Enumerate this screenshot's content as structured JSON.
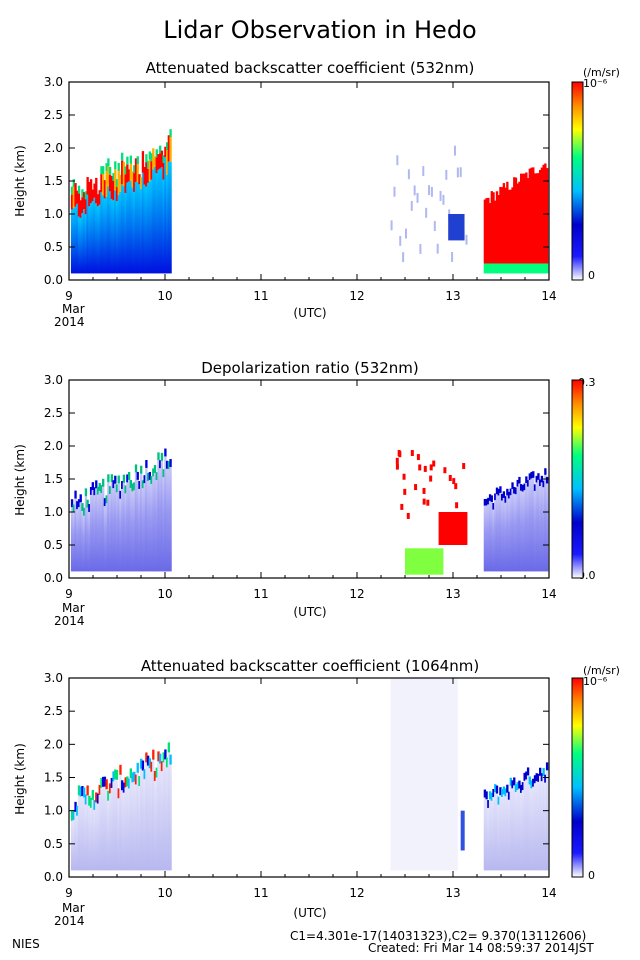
{
  "page": {
    "title": "Lidar Observation in Hedo",
    "footer_left": "NIES",
    "footer_calib": "C1=4.301e-17(14031323),C2= 9.370(13112606)",
    "footer_created": "Created: Fri Mar 14 08:59:37 2014JST"
  },
  "colors": {
    "colorbar_stops": [
      "#ffffff",
      "#1a1aff",
      "#0000cc",
      "#00bfff",
      "#00ff7f",
      "#ffff00",
      "#ff8c00",
      "#ff0000"
    ]
  },
  "chart_data": [
    {
      "type": "heatmap",
      "title": "Attenuated backscatter coefficient (532nm)",
      "ylabel": "Height (km)",
      "xlabel": "(UTC)",
      "x_ticks": [
        "9",
        "10",
        "11",
        "12",
        "13",
        "14"
      ],
      "x_sub_labels": [
        "Mar",
        "2014"
      ],
      "xlim": [
        9,
        14
      ],
      "ylim": [
        0.0,
        3.0
      ],
      "y_ticks": [
        "0.0",
        "0.5",
        "1.0",
        "1.5",
        "2.0",
        "2.5",
        "3.0"
      ],
      "colorbar": {
        "unit": "(/m/sr)",
        "max_label": "10⁻⁶",
        "min_label": "0"
      },
      "data_gaps_utc": [
        [
          10.05,
          12.35
        ],
        [
          13.15,
          13.32
        ]
      ],
      "cloud_layer_km": {
        "start": 0.9,
        "end": 1.9
      }
    },
    {
      "type": "heatmap",
      "title": "Depolarization ratio (532nm)",
      "ylabel": "Height (km)",
      "xlabel": "(UTC)",
      "x_ticks": [
        "9",
        "10",
        "11",
        "12",
        "13",
        "14"
      ],
      "x_sub_labels": [
        "Mar",
        "2014"
      ],
      "xlim": [
        9,
        14
      ],
      "ylim": [
        0.0,
        3.0
      ],
      "y_ticks": [
        "0.0",
        "0.5",
        "1.0",
        "1.5",
        "2.0",
        "2.5",
        "3.0"
      ],
      "colorbar": {
        "unit": "",
        "max_label": "0.3",
        "min_label": "0.0"
      },
      "data_gaps_utc": [
        [
          10.05,
          12.35
        ],
        [
          13.15,
          13.32
        ]
      ]
    },
    {
      "type": "heatmap",
      "title": "Attenuated backscatter coefficient (1064nm)",
      "ylabel": "Height (km)",
      "xlabel": "(UTC)",
      "x_ticks": [
        "9",
        "10",
        "11",
        "12",
        "13",
        "14"
      ],
      "x_sub_labels": [
        "Mar",
        "2014"
      ],
      "xlim": [
        9,
        14
      ],
      "ylim": [
        0.0,
        3.0
      ],
      "y_ticks": [
        "0.0",
        "0.5",
        "1.0",
        "1.5",
        "2.0",
        "2.5",
        "3.0"
      ],
      "colorbar": {
        "unit": "(/m/sr)",
        "max_label": "10⁻⁶",
        "min_label": "0"
      },
      "data_gaps_utc": [
        [
          10.05,
          12.35
        ],
        [
          13.15,
          13.32
        ]
      ]
    }
  ]
}
